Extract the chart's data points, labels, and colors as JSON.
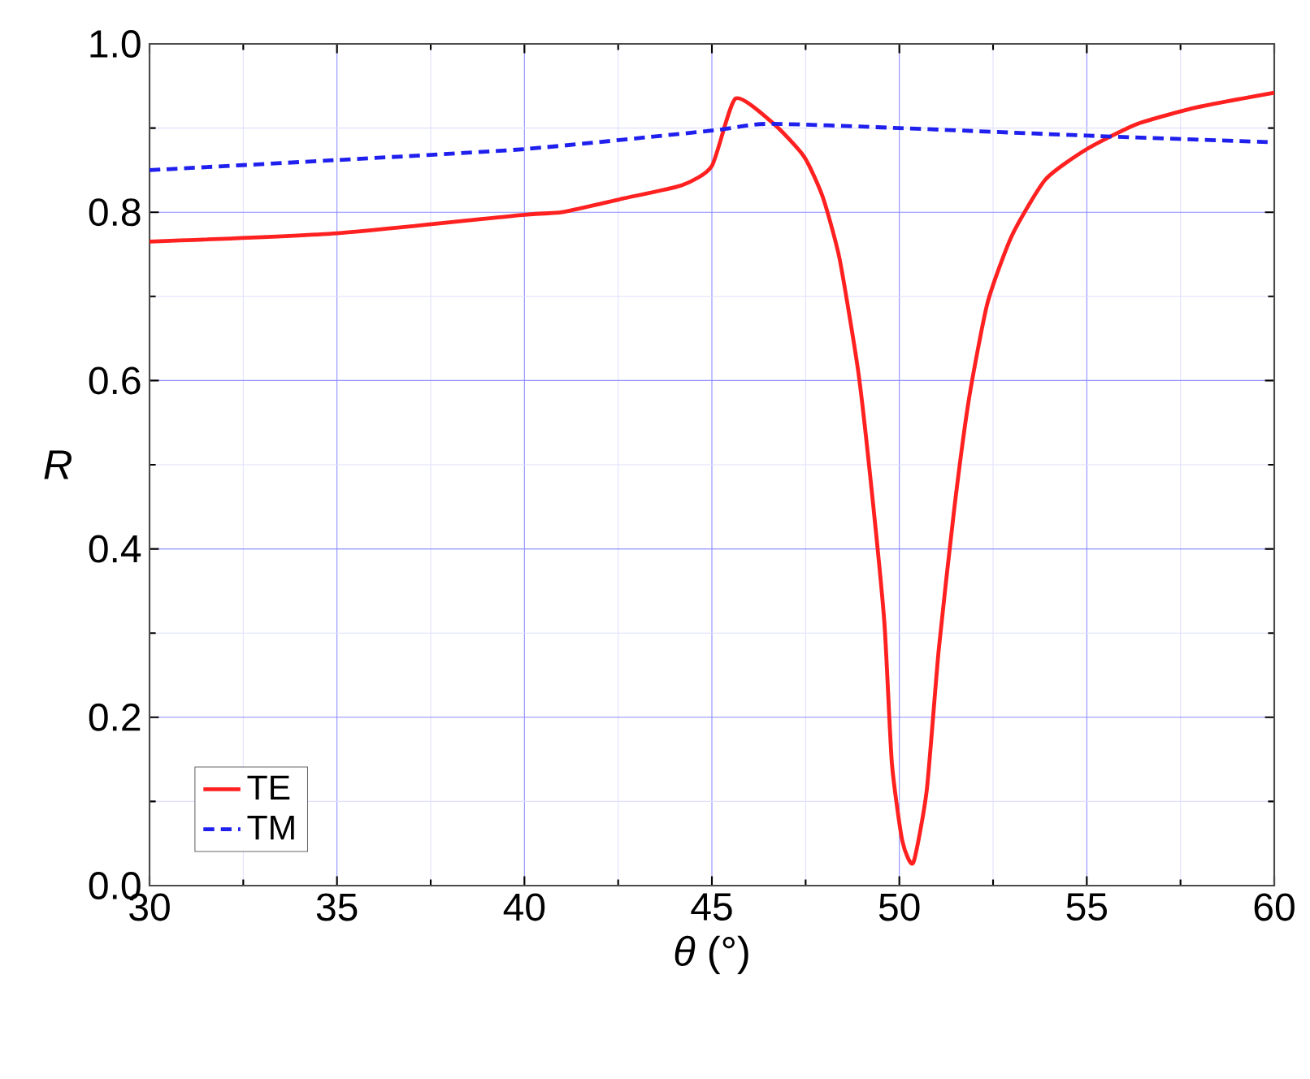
{
  "chart_data": {
    "type": "line",
    "xlabel": "*θ* (°)",
    "ylabel": "R",
    "xlim": [
      30,
      60
    ],
    "ylim": [
      0,
      1
    ],
    "xticks": [
      30,
      35,
      40,
      45,
      50,
      55,
      60
    ],
    "yticks": [
      {
        "value": 0,
        "label": "0.0"
      },
      0.2,
      0.4,
      0.6,
      0.8,
      {
        "value": 1,
        "label": "1.0"
      }
    ],
    "grid": true,
    "legend": "bottom left",
    "marker": "none",
    "series": [
      {
        "name": "TE",
        "color": "#ff2020",
        "line_style": "solid",
        "x": [
          30,
          35,
          40,
          41,
          42.6,
          44.2,
          45,
          45.63,
          46.65,
          47.46,
          47.95,
          48.4,
          48.9,
          49.24,
          49.6,
          49.8,
          50.08,
          50.37,
          50.73,
          51.05,
          51.46,
          51.86,
          52.35,
          53.0,
          53.9,
          55,
          56.35,
          57.98,
          60
        ],
        "values": [
          0.765,
          0.775,
          0.797,
          0.8,
          0.816,
          0.832,
          0.855,
          0.935,
          0.905,
          0.866,
          0.819,
          0.746,
          0.612,
          0.479,
          0.313,
          0.146,
          0.053,
          0.027,
          0.113,
          0.28,
          0.446,
          0.579,
          0.692,
          0.772,
          0.839,
          0.875,
          0.905,
          0.925,
          0.942
        ]
      },
      {
        "name": "TM",
        "color": "#2020ee",
        "line_style": "dashed",
        "x": [
          30,
          35,
          40,
          45,
          46.5,
          50,
          55,
          60
        ],
        "values": [
          0.85,
          0.862,
          0.875,
          0.897,
          0.905,
          0.9,
          0.891,
          0.883
        ]
      }
    ]
  }
}
